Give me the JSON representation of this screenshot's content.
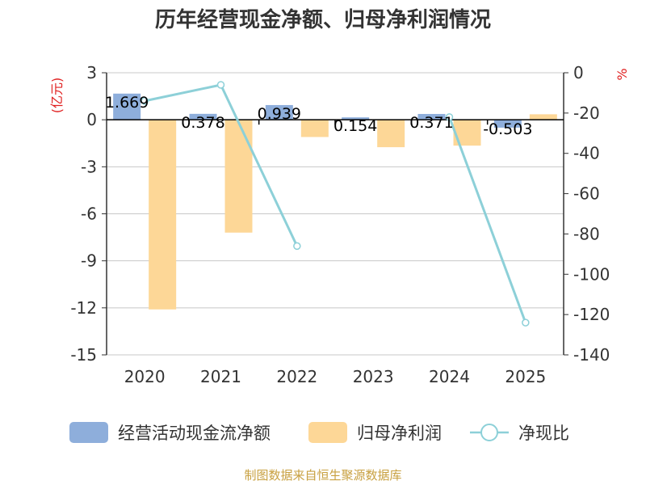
{
  "chart_data": {
    "type": "bar+line",
    "title": "历年经营现金净额、归母净利润情况",
    "categories": [
      "2020",
      "2021",
      "2022",
      "2023",
      "2024",
      "2025"
    ],
    "series": [
      {
        "name": "经营活动现金流净额",
        "type": "bar",
        "axis": "left",
        "color": "#8eaedb",
        "values": [
          1.669,
          0.378,
          0.939,
          0.154,
          0.371,
          -0.503
        ],
        "labels": [
          "1.669",
          "0.378",
          "0.939",
          "0.154",
          "0.371",
          "-0.503"
        ]
      },
      {
        "name": "归母净利润",
        "type": "bar",
        "axis": "left",
        "color": "#fdd797",
        "values": [
          -12.1,
          -7.2,
          -1.1,
          -1.75,
          -1.65,
          0.35
        ]
      },
      {
        "name": "净现比",
        "type": "line",
        "axis": "right",
        "color": "#8dd0d8",
        "values": [
          -14,
          -6,
          -86,
          null,
          -22,
          -124
        ]
      }
    ],
    "y_left": {
      "label": "(亿元)",
      "ylim": [
        -15,
        3
      ],
      "ticks": [
        3,
        0,
        -3,
        -6,
        -9,
        -12,
        -15
      ]
    },
    "y_right": {
      "label": "%",
      "ylim": [
        -140,
        0
      ],
      "ticks": [
        0,
        -20,
        -40,
        -60,
        -80,
        -100,
        -120,
        -140
      ]
    },
    "legend": "bottom"
  },
  "source": "制图数据来自恒生聚源数据库"
}
